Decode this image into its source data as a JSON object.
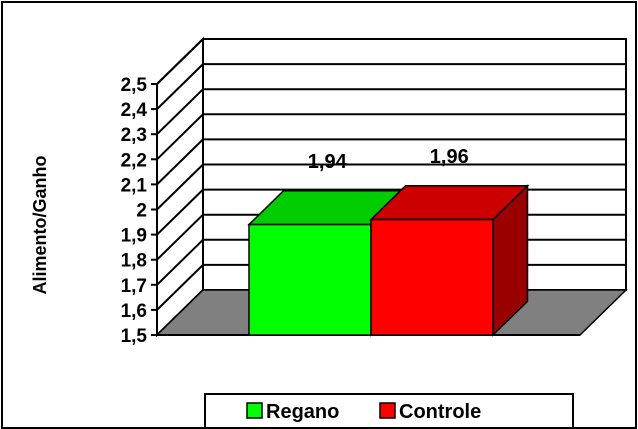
{
  "chart_data": {
    "type": "bar",
    "three_d": true,
    "title": "",
    "xlabel": "",
    "ylabel": "Alimento/Ganho",
    "ylim": [
      1.5,
      2.5
    ],
    "yticks": [
      "1,5",
      "1,6",
      "1,7",
      "1,8",
      "1,9",
      "2",
      "2,1",
      "2,2",
      "2,3",
      "2,4",
      "2,5"
    ],
    "grid": true,
    "legend_position": "bottom",
    "series": [
      {
        "name": "Regano",
        "value": 1.94,
        "label": "1,94",
        "color": "#00ff00"
      },
      {
        "name": "Controle",
        "value": 1.96,
        "label": "1,96",
        "color": "#ff0000"
      }
    ]
  },
  "colors": {
    "floor": "#808080",
    "regano_top": "#00cc00",
    "regano_side": "#009900",
    "controle_top": "#cc0000",
    "controle_side": "#990000"
  }
}
